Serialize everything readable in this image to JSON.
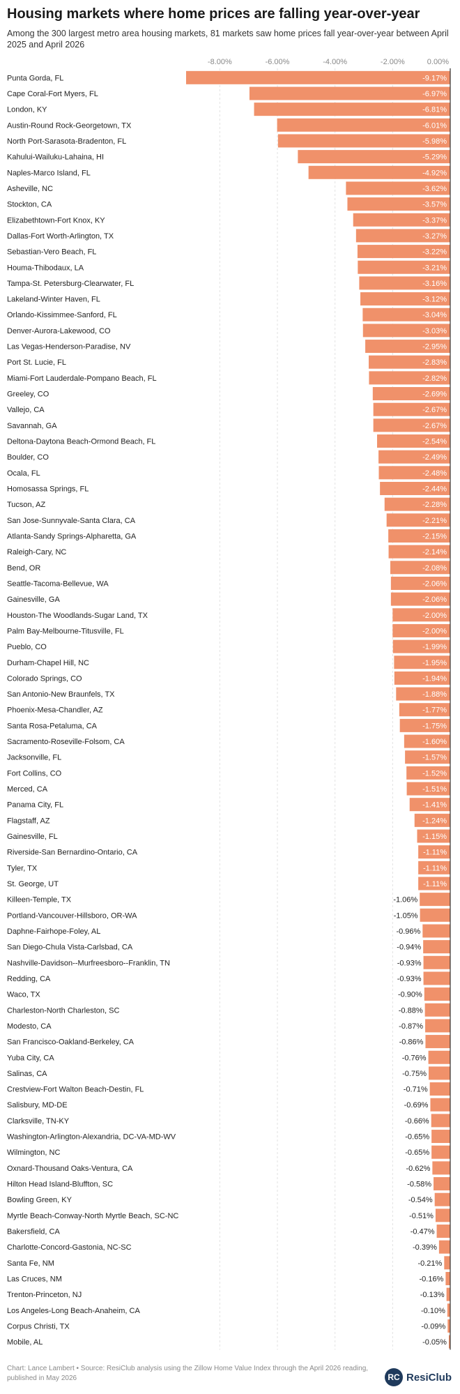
{
  "title": "Housing markets where home prices are falling year-over-year",
  "subtitle": "Among the 300 largest metro area housing markets, 81 markets saw home prices fall year-over-year between April 2025 and April 2026",
  "footer": "Chart: Lance Lambert • Source: ResiClub analysis using the Zillow Home Value Index through the April 2026 reading, published in May 2026",
  "logo": {
    "mark": "RC",
    "text": "ResiClub"
  },
  "colors": {
    "bar": "#f0916a",
    "axis_text": "#888888",
    "grid": "#e2e2e2",
    "zero_line": "#333333",
    "label": "#222222"
  },
  "chart_data": {
    "type": "bar",
    "orientation": "horizontal",
    "xlim": [
      -9.17,
      0
    ],
    "x_ticks": [
      {
        "value": -8,
        "label": "-8.00%"
      },
      {
        "value": -6,
        "label": "-6.00%"
      },
      {
        "value": -4,
        "label": "-4.00%"
      },
      {
        "value": -2,
        "label": "-2.00%"
      },
      {
        "value": 0,
        "label": "0.00%"
      }
    ],
    "grid": true,
    "categories": [
      "Punta Gorda, FL",
      "Cape Coral-Fort Myers, FL",
      "London, KY",
      "Austin-Round Rock-Georgetown, TX",
      "North Port-Sarasota-Bradenton, FL",
      "Kahului-Wailuku-Lahaina, HI",
      "Naples-Marco Island, FL",
      "Asheville, NC",
      "Stockton, CA",
      "Elizabethtown-Fort Knox, KY",
      "Dallas-Fort Worth-Arlington, TX",
      "Sebastian-Vero Beach, FL",
      "Houma-Thibodaux, LA",
      "Tampa-St. Petersburg-Clearwater, FL",
      "Lakeland-Winter Haven, FL",
      "Orlando-Kissimmee-Sanford, FL",
      "Denver-Aurora-Lakewood, CO",
      "Las Vegas-Henderson-Paradise, NV",
      "Port St. Lucie, FL",
      "Miami-Fort Lauderdale-Pompano Beach, FL",
      "Greeley, CO",
      "Vallejo, CA",
      "Savannah, GA",
      "Deltona-Daytona Beach-Ormond Beach, FL",
      "Boulder, CO",
      "Ocala, FL",
      "Homosassa Springs, FL",
      "Tucson, AZ",
      "San Jose-Sunnyvale-Santa Clara, CA",
      "Atlanta-Sandy Springs-Alpharetta, GA",
      "Raleigh-Cary, NC",
      "Bend, OR",
      "Seattle-Tacoma-Bellevue, WA",
      "Gainesville, GA",
      "Houston-The Woodlands-Sugar Land, TX",
      "Palm Bay-Melbourne-Titusville, FL",
      "Pueblo, CO",
      "Durham-Chapel Hill, NC",
      "Colorado Springs, CO",
      "San Antonio-New Braunfels, TX",
      "Phoenix-Mesa-Chandler, AZ",
      "Santa Rosa-Petaluma, CA",
      "Sacramento-Roseville-Folsom, CA",
      "Jacksonville, FL",
      "Fort Collins, CO",
      "Merced, CA",
      "Panama City, FL",
      "Flagstaff, AZ",
      "Gainesville, FL",
      "Riverside-San Bernardino-Ontario, CA",
      "Tyler, TX",
      "St. George, UT",
      "Killeen-Temple, TX",
      "Portland-Vancouver-Hillsboro, OR-WA",
      "Daphne-Fairhope-Foley, AL",
      "San Diego-Chula Vista-Carlsbad, CA",
      "Nashville-Davidson--Murfreesboro--Franklin, TN",
      "Redding, CA",
      "Waco, TX",
      "Charleston-North Charleston, SC",
      "Modesto, CA",
      "San Francisco-Oakland-Berkeley, CA",
      "Yuba City, CA",
      "Salinas, CA",
      "Crestview-Fort Walton Beach-Destin, FL",
      "Salisbury, MD-DE",
      "Clarksville, TN-KY",
      "Washington-Arlington-Alexandria, DC-VA-MD-WV",
      "Wilmington, NC",
      "Oxnard-Thousand Oaks-Ventura, CA",
      "Hilton Head Island-Bluffton, SC",
      "Bowling Green, KY",
      "Myrtle Beach-Conway-North Myrtle Beach, SC-NC",
      "Bakersfield, CA",
      "Charlotte-Concord-Gastonia, NC-SC",
      "Santa Fe, NM",
      "Las Cruces, NM",
      "Trenton-Princeton, NJ",
      "Los Angeles-Long Beach-Anaheim, CA",
      "Corpus Christi, TX",
      "Mobile, AL"
    ],
    "values": [
      -9.17,
      -6.97,
      -6.81,
      -6.01,
      -5.98,
      -5.29,
      -4.92,
      -3.62,
      -3.57,
      -3.37,
      -3.27,
      -3.22,
      -3.21,
      -3.16,
      -3.12,
      -3.04,
      -3.03,
      -2.95,
      -2.83,
      -2.82,
      -2.69,
      -2.67,
      -2.67,
      -2.54,
      -2.49,
      -2.48,
      -2.44,
      -2.28,
      -2.21,
      -2.15,
      -2.14,
      -2.08,
      -2.06,
      -2.06,
      -2.0,
      -2.0,
      -1.99,
      -1.95,
      -1.94,
      -1.88,
      -1.77,
      -1.75,
      -1.6,
      -1.57,
      -1.52,
      -1.51,
      -1.41,
      -1.24,
      -1.15,
      -1.11,
      -1.11,
      -1.11,
      -1.06,
      -1.05,
      -0.96,
      -0.94,
      -0.93,
      -0.93,
      -0.9,
      -0.88,
      -0.87,
      -0.86,
      -0.76,
      -0.75,
      -0.71,
      -0.69,
      -0.66,
      -0.65,
      -0.65,
      -0.62,
      -0.58,
      -0.54,
      -0.51,
      -0.47,
      -0.39,
      -0.21,
      -0.16,
      -0.13,
      -0.1,
      -0.09,
      -0.05
    ],
    "value_labels": [
      "-9.17%",
      "-6.97%",
      "-6.81%",
      "-6.01%",
      "-5.98%",
      "-5.29%",
      "-4.92%",
      "-3.62%",
      "-3.57%",
      "-3.37%",
      "-3.27%",
      "-3.22%",
      "-3.21%",
      "-3.16%",
      "-3.12%",
      "-3.04%",
      "-3.03%",
      "-2.95%",
      "-2.83%",
      "-2.82%",
      "-2.69%",
      "-2.67%",
      "-2.67%",
      "-2.54%",
      "-2.49%",
      "-2.48%",
      "-2.44%",
      "-2.28%",
      "-2.21%",
      "-2.15%",
      "-2.14%",
      "-2.08%",
      "-2.06%",
      "-2.06%",
      "-2.00%",
      "-2.00%",
      "-1.99%",
      "-1.95%",
      "-1.94%",
      "-1.88%",
      "-1.77%",
      "-1.75%",
      "-1.60%",
      "-1.57%",
      "-1.52%",
      "-1.51%",
      "-1.41%",
      "-1.24%",
      "-1.15%",
      "-1.11%",
      "-1.11%",
      "-1.11%",
      "-1.06%",
      "-1.05%",
      "-0.96%",
      "-0.94%",
      "-0.93%",
      "-0.93%",
      "-0.90%",
      "-0.88%",
      "-0.87%",
      "-0.86%",
      "-0.76%",
      "-0.75%",
      "-0.71%",
      "-0.69%",
      "-0.66%",
      "-0.65%",
      "-0.65%",
      "-0.62%",
      "-0.58%",
      "-0.54%",
      "-0.51%",
      "-0.47%",
      "-0.39%",
      "-0.21%",
      "-0.16%",
      "-0.13%",
      "-0.10%",
      "-0.09%",
      "-0.05%"
    ]
  }
}
